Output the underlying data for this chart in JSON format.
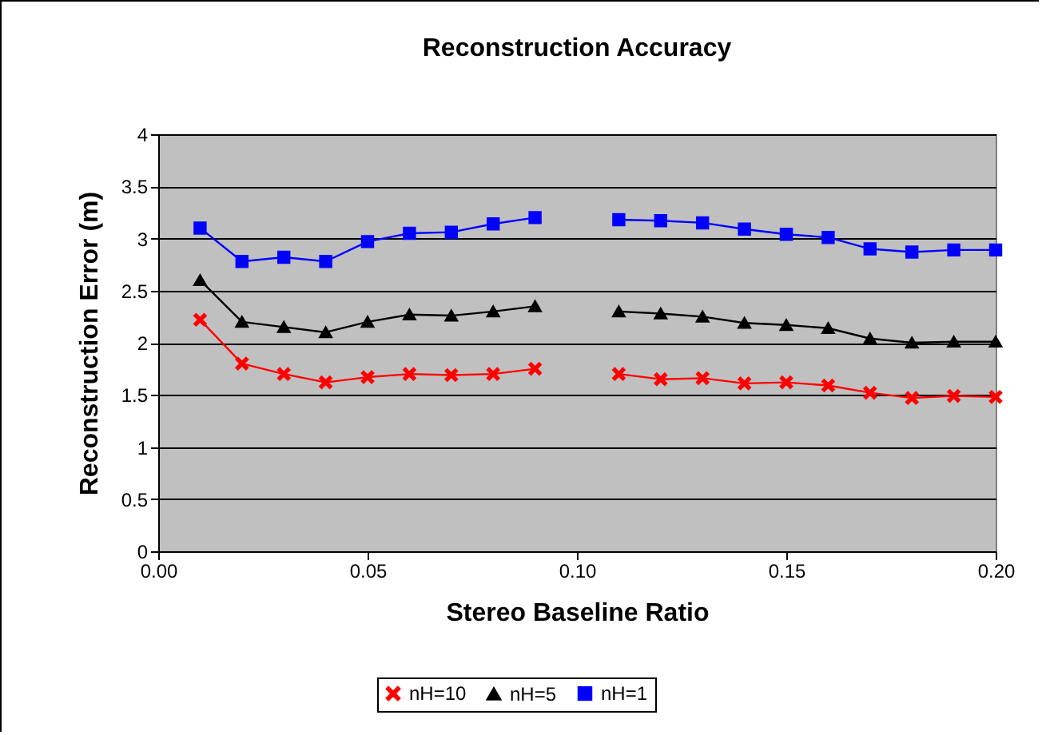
{
  "chart_data": {
    "type": "line",
    "title": "Reconstruction Accuracy",
    "xlabel": "Stereo Baseline Ratio",
    "ylabel": "Reconstruction Error (m)",
    "x": [
      0.01,
      0.02,
      0.03,
      0.04,
      0.05,
      0.06,
      0.07,
      0.08,
      0.09,
      0.1,
      0.11,
      0.12,
      0.13,
      0.14,
      0.15,
      0.16,
      0.17,
      0.18,
      0.19,
      0.2
    ],
    "series": [
      {
        "name": "nH=10",
        "color": "#ff0000",
        "marker": "cross",
        "values": [
          2.22,
          1.8,
          1.7,
          1.62,
          1.67,
          1.7,
          1.69,
          1.7,
          1.75,
          null,
          1.7,
          1.65,
          1.66,
          1.61,
          1.62,
          1.59,
          1.52,
          1.47,
          1.49,
          1.48
        ]
      },
      {
        "name": "nH=5",
        "color": "#000000",
        "marker": "triangle",
        "values": [
          2.6,
          2.2,
          2.15,
          2.1,
          2.2,
          2.27,
          2.26,
          2.3,
          2.35,
          null,
          2.3,
          2.28,
          2.25,
          2.19,
          2.17,
          2.14,
          2.04,
          2.0,
          2.01,
          2.01
        ]
      },
      {
        "name": "nH=1",
        "color": "#0000ff",
        "marker": "square",
        "values": [
          3.1,
          2.78,
          2.82,
          2.78,
          2.97,
          3.05,
          3.06,
          3.14,
          3.2,
          null,
          3.18,
          3.17,
          3.15,
          3.09,
          3.04,
          3.01,
          2.9,
          2.87,
          2.89,
          2.89
        ]
      }
    ],
    "xlim": [
      0,
      0.2
    ],
    "xticks": [
      {
        "value": 0,
        "label": "0.00"
      },
      {
        "value": 0.05,
        "label": "0.05"
      },
      {
        "value": 0.1,
        "label": "0.10"
      },
      {
        "value": 0.15,
        "label": "0.15"
      },
      {
        "value": 0.2,
        "label": "0.20"
      }
    ],
    "ylim": [
      0,
      4
    ],
    "yticks": [
      0,
      0.5,
      1,
      1.5,
      2,
      2.5,
      3,
      3.5,
      4
    ],
    "grid": "y",
    "legend": "bottom",
    "line_style": "solid"
  }
}
